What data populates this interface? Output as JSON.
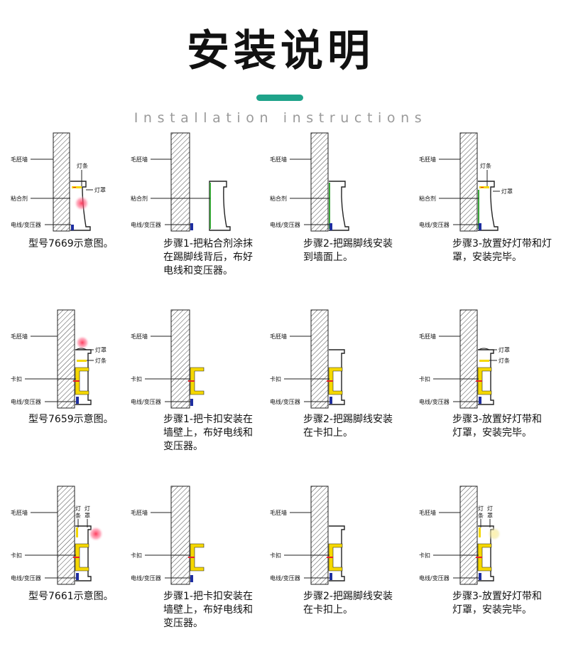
{
  "header": {
    "title": "安装说明",
    "subtitle": "Installation instructions",
    "accent_color": "#1fa38a"
  },
  "labels": {
    "wall": "毛胚墙",
    "strip": "灯条",
    "cover": "灯罩",
    "adhesive": "粘合剂",
    "wire": "电线/变压器",
    "clip": "卡扣",
    "strip_v1": "灯",
    "strip_v2": "条",
    "cover_v1": "灯",
    "cover_v2": "罩"
  },
  "captions": {
    "r1c1": "型号7669示意图。",
    "r1c2": "步骤1-把粘合剂涂抹在踢脚线背后，布好电线和变压器。",
    "r1c3": "步骤2-把踢脚线安装到墙面上。",
    "r1c4": "步骤3-放置好灯带和灯罩，安装完毕。",
    "r2c1": "型号7659示意图。",
    "r2c2": "步骤1-把卡扣安装在墙壁上，布好电线和变压器。",
    "r2c3": "步骤2-把踢脚线安装在卡扣上。",
    "r2c4": "步骤3-放置好灯带和灯罩，安装完毕。",
    "r3c1": "型号7661示意图。",
    "r3c2": "步骤1-把卡扣安装在墙壁上，布好电线和变压器。",
    "r3c3": "步骤2-把踢脚线安装在卡扣上。",
    "r3c4": "步骤3-放置好灯带和灯罩，安装完毕。"
  },
  "colors": {
    "clip_yellow": "#f5d800",
    "led_red": "#e8212a",
    "wire_blue": "#1e2ea0",
    "adhesive_green": "#3aa63a",
    "glow_red": "#ff5577",
    "glow_yellow": "#f5efb0"
  }
}
